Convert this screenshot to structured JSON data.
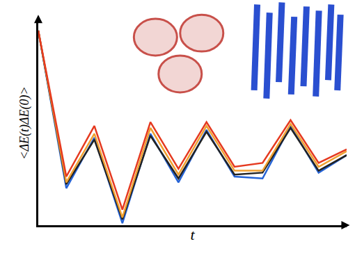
{
  "chart_data": {
    "type": "line",
    "x_label": "t",
    "y_label": "<ΔE(t)ΔE(0)>",
    "x": [
      0,
      1,
      2,
      3,
      4,
      5,
      6,
      7,
      8,
      9,
      10,
      11
    ],
    "xlim": [
      0,
      11
    ],
    "ylim": [
      0,
      1.05
    ],
    "tick_labels": false,
    "grid": false,
    "series": [
      {
        "color": "#2563d6",
        "values": [
          1.0,
          0.19,
          0.45,
          0.01,
          0.47,
          0.22,
          0.49,
          0.25,
          0.24,
          0.51,
          0.27,
          0.36
        ]
      },
      {
        "color": "#222222",
        "values": [
          1.0,
          0.21,
          0.44,
          0.03,
          0.46,
          0.24,
          0.48,
          0.26,
          0.27,
          0.5,
          0.28,
          0.36
        ]
      },
      {
        "color": "#f0a030",
        "values": [
          1.0,
          0.22,
          0.47,
          0.04,
          0.5,
          0.26,
          0.51,
          0.28,
          0.28,
          0.52,
          0.3,
          0.38
        ]
      },
      {
        "color": "#e5391f",
        "values": [
          1.0,
          0.25,
          0.51,
          0.08,
          0.53,
          0.29,
          0.53,
          0.3,
          0.32,
          0.54,
          0.32,
          0.39
        ]
      }
    ]
  }
}
